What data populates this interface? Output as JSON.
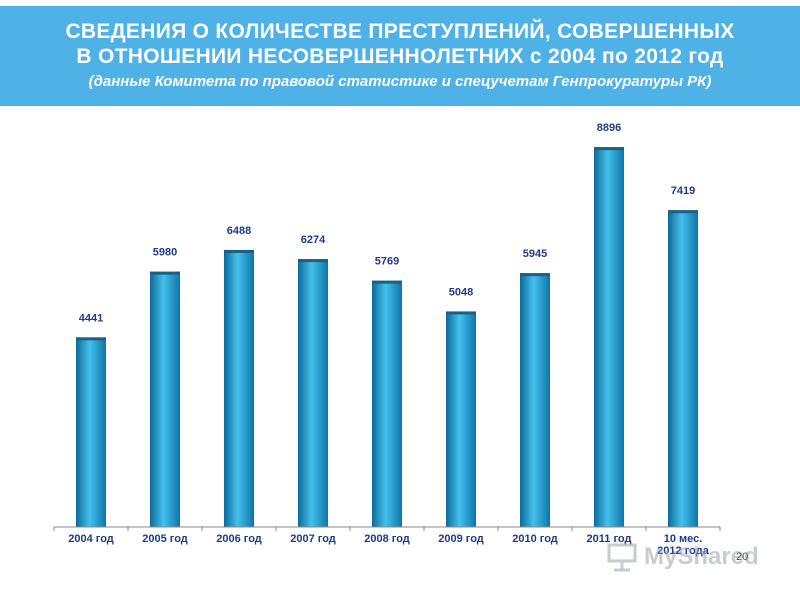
{
  "header": {
    "line1": "СВЕДЕНИЯ  О  КОЛИЧЕСТВЕ  ПРЕСТУПЛЕНИЙ,  СОВЕРШЕННЫХ",
    "line2": "В  ОТНОШЕНИИ  НЕСОВЕРШЕННОЛЕТНИХ  с 2004 по 2012 год",
    "line3": "(данные Комитета по правовой статистике и спецучетам Генпрокуратуры РК)"
  },
  "colors": {
    "header_bg": "#4fb2e6",
    "bar_dark": "#0b6a99",
    "bar_light": "#45c0ec",
    "axis_label": "#1f3c8c",
    "value_label": "#1f3c8c"
  },
  "chart_data": {
    "type": "bar",
    "categories": [
      "2004 год",
      "2005 год",
      "2006 год",
      "2007 год",
      "2008 год",
      "2009 год",
      "2010 год",
      "2011 год",
      "10 мес. 2012 года"
    ],
    "category_lines": [
      [
        "2004 год"
      ],
      [
        "2005 год"
      ],
      [
        "2006 год"
      ],
      [
        "2007 год"
      ],
      [
        "2008 год"
      ],
      [
        "2009 год"
      ],
      [
        "2010 год"
      ],
      [
        "2011 год"
      ],
      [
        "10 мес.",
        "2012 года"
      ]
    ],
    "values": [
      4441,
      5980,
      6488,
      6274,
      5769,
      5048,
      5945,
      8896,
      7419
    ],
    "value_labels": [
      "4441",
      "5980",
      "6488",
      "6274",
      "5769",
      "5048",
      "5945",
      "8896",
      "7419"
    ],
    "ylim": [
      0,
      10000
    ],
    "grid": false,
    "legend": "none"
  },
  "watermark": {
    "text": "MyShared"
  },
  "page_number": "20"
}
